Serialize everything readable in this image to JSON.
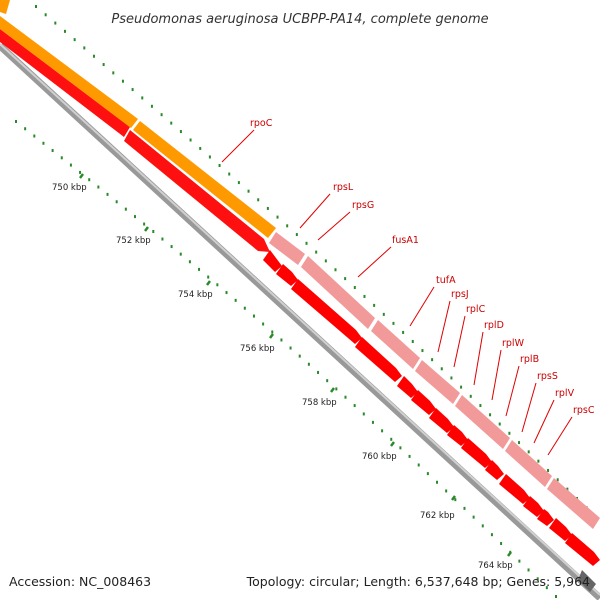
{
  "title": "Pseudomonas aeruginosa UCBPP-PA14, complete genome",
  "footer": {
    "accession": "Accession: NC_008463",
    "summary": "Topology: circular; Length: 6,537,648 bp; Genes: 5,964"
  },
  "ticks": [
    {
      "label": "750 kbp",
      "kbp": 750
    },
    {
      "label": "752 kbp",
      "kbp": 752
    },
    {
      "label": "754 kbp",
      "kbp": 754
    },
    {
      "label": "756 kbp",
      "kbp": 756
    },
    {
      "label": "758 kbp",
      "kbp": 758
    },
    {
      "label": "760 kbp",
      "kbp": 760
    },
    {
      "label": "762 kbp",
      "kbp": 762
    },
    {
      "label": "764 kbp",
      "kbp": 764
    }
  ],
  "genes": [
    {
      "name": "rpoC"
    },
    {
      "name": "rpsL"
    },
    {
      "name": "rpsG"
    },
    {
      "name": "fusA1"
    },
    {
      "name": "tufA"
    },
    {
      "name": "rpsJ"
    },
    {
      "name": "rplC"
    },
    {
      "name": "rplD"
    },
    {
      "name": "rplW"
    },
    {
      "name": "rplB"
    },
    {
      "name": "rpsS"
    },
    {
      "name": "rplV"
    },
    {
      "name": "rpsC"
    }
  ],
  "colors": {
    "cds": "#ff0000",
    "cds_dark": "#cc0000",
    "operon_orange": "#ff9900",
    "operon_pink": "#f29a9a",
    "backbone": "#888888",
    "tick": "#2a8a2a",
    "label_line": "#e00000",
    "label_text": "#cc0000"
  }
}
